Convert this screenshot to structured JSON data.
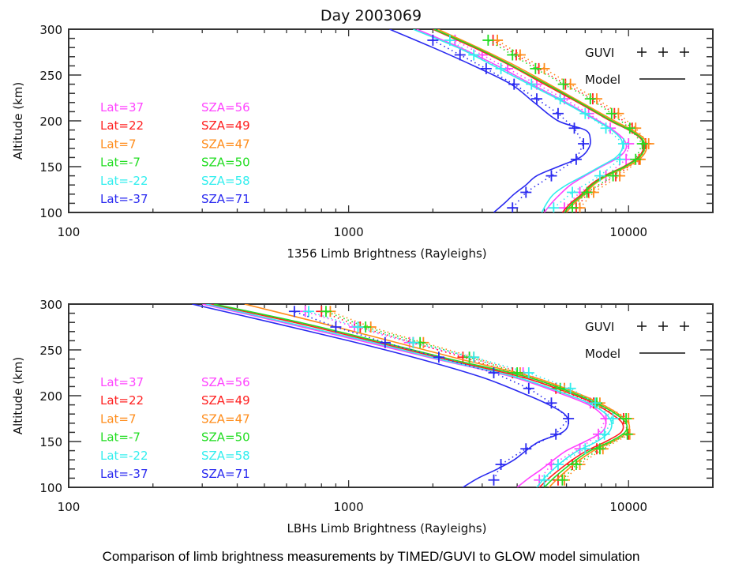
{
  "title": "Day 2003069",
  "caption": "Comparison of limb brightness measurements by TIMED/GUVI to GLOW model simulation",
  "chart_data": [
    {
      "type": "line",
      "xlabel": "1356 Limb Brightness (Rayleighs)",
      "ylabel": "Altitude (km)",
      "xscale": "log",
      "xlim": [
        100,
        20000
      ],
      "ylim": [
        100,
        300
      ],
      "xticks": [
        "100",
        "1000",
        "10000"
      ],
      "yticks": [
        "100",
        "150",
        "200",
        "250",
        "300"
      ],
      "legend": {
        "guvi_label": "GUVI",
        "guvi_symbol": "+ + +",
        "model_label": "Model",
        "placement": "top-right"
      },
      "series_labels": [
        {
          "lat": "Lat=37",
          "sza": "SZA=56",
          "color": "#ff44ff"
        },
        {
          "lat": "Lat=22",
          "sza": "SZA=49",
          "color": "#ff2020"
        },
        {
          "lat": "Lat=7",
          "sza": "SZA=47",
          "color": "#ff8c1a"
        },
        {
          "lat": "Lat=-7",
          "sza": "SZA=50",
          "color": "#22dd22"
        },
        {
          "lat": "Lat=-22",
          "sza": "SZA=58",
          "color": "#33eeee"
        },
        {
          "lat": "Lat=-37",
          "sza": "SZA=71",
          "color": "#2a2af0"
        }
      ],
      "model_altitudes": [
        100,
        110,
        120,
        130,
        140,
        150,
        160,
        170,
        180,
        190,
        200,
        220,
        240,
        260,
        280,
        300
      ],
      "model": [
        [
          5000,
          5300,
          5700,
          6200,
          7000,
          8000,
          9200,
          9800,
          9600,
          8800,
          7800,
          6000,
          4500,
          3400,
          2500,
          1750
        ],
        [
          5800,
          6200,
          6800,
          7300,
          8200,
          9600,
          10800,
          11300,
          11100,
          10000,
          8600,
          6600,
          5000,
          3800,
          2800,
          2000
        ],
        [
          6000,
          6400,
          7000,
          7500,
          8400,
          9900,
          11100,
          11600,
          11400,
          10300,
          8900,
          6800,
          5200,
          3950,
          2900,
          2080
        ],
        [
          5900,
          6300,
          6900,
          7400,
          8300,
          9700,
          10900,
          11400,
          11200,
          10100,
          8700,
          6700,
          5100,
          3850,
          2850,
          2020
        ],
        [
          4900,
          5100,
          5400,
          6000,
          6900,
          7900,
          9000,
          9500,
          9400,
          8700,
          7700,
          5900,
          4400,
          3300,
          2450,
          1700
        ],
        [
          3300,
          3600,
          3900,
          4300,
          4700,
          5600,
          6700,
          7200,
          7300,
          7000,
          5600,
          4600,
          3800,
          2800,
          2000,
          1400
        ]
      ],
      "guvi_altitudes": [
        105,
        122,
        140,
        158,
        175,
        192,
        208,
        224,
        240,
        257,
        272,
        288
      ],
      "guvi": [
        [
          5900,
          6700,
          8300,
          9800,
          10000,
          8600,
          7200,
          5900,
          4700,
          3700,
          3000,
          2400
        ],
        [
          6500,
          7200,
          9000,
          10900,
          11500,
          10300,
          8900,
          7450,
          5950,
          4780,
          3970,
          3280
        ],
        [
          6700,
          7500,
          9300,
          11000,
          11800,
          10600,
          9200,
          7700,
          6200,
          5000,
          4100,
          3400
        ],
        [
          6300,
          7100,
          8800,
          10600,
          11200,
          10100,
          8700,
          7300,
          5850,
          4650,
          3850,
          3150
        ],
        [
          5400,
          6300,
          7900,
          9300,
          9600,
          8300,
          7000,
          5700,
          4500,
          3500,
          2800,
          2300
        ],
        [
          3850,
          4300,
          5300,
          6500,
          6900,
          6400,
          5600,
          4700,
          3900,
          3100,
          2500,
          2000
        ]
      ]
    },
    {
      "type": "line",
      "xlabel": "LBHs Limb Brightness (Rayleighs)",
      "ylabel": "Altitude (km)",
      "xscale": "log",
      "xlim": [
        100,
        20000
      ],
      "ylim": [
        100,
        300
      ],
      "xticks": [
        "100",
        "1000",
        "10000"
      ],
      "yticks": [
        "100",
        "150",
        "200",
        "250",
        "300"
      ],
      "legend": {
        "guvi_label": "GUVI",
        "guvi_symbol": "+ + +",
        "model_label": "Model",
        "placement": "top-right"
      },
      "series_labels": [
        {
          "lat": "Lat=37",
          "sza": "SZA=56",
          "color": "#ff44ff"
        },
        {
          "lat": "Lat=22",
          "sza": "SZA=49",
          "color": "#ff2020"
        },
        {
          "lat": "Lat=7",
          "sza": "SZA=47",
          "color": "#ff8c1a"
        },
        {
          "lat": "Lat=-7",
          "sza": "SZA=50",
          "color": "#22dd22"
        },
        {
          "lat": "Lat=-22",
          "sza": "SZA=58",
          "color": "#33eeee"
        },
        {
          "lat": "Lat=-37",
          "sza": "SZA=71",
          "color": "#2a2af0"
        }
      ],
      "model_altitudes": [
        100,
        110,
        120,
        130,
        140,
        150,
        160,
        170,
        180,
        190,
        200,
        220,
        240,
        260,
        280,
        300
      ],
      "model": [
        [
          4000,
          4400,
          4900,
          5400,
          6000,
          7000,
          8000,
          8300,
          8000,
          7200,
          6000,
          3900,
          2050,
          1100,
          580,
          300
        ],
        [
          4800,
          5200,
          5700,
          6300,
          7100,
          8300,
          9400,
          9500,
          8700,
          7700,
          6500,
          4200,
          2200,
          1200,
          640,
          320
        ],
        [
          5200,
          5600,
          6100,
          6700,
          7500,
          8800,
          9900,
          10000,
          9200,
          8100,
          6900,
          4600,
          2500,
          1400,
          780,
          425
        ],
        [
          5000,
          5400,
          5900,
          6500,
          7300,
          8600,
          9700,
          9800,
          9000,
          7900,
          6700,
          4400,
          2300,
          1250,
          670,
          330
        ],
        [
          4700,
          5000,
          5400,
          5900,
          6600,
          7700,
          8500,
          8700,
          8300,
          7400,
          6200,
          4000,
          2100,
          1150,
          600,
          310
        ],
        [
          2560,
          2900,
          3400,
          3900,
          4300,
          4800,
          5800,
          6100,
          5900,
          5200,
          4400,
          3000,
          1800,
          1000,
          530,
          276
        ]
      ],
      "guvi_altitudes": [
        108,
        125,
        142,
        158,
        175,
        192,
        208,
        225,
        242,
        258,
        275,
        292
      ],
      "guvi": [
        [
          4800,
          5300,
          6700,
          7800,
          8300,
          7300,
          5900,
          4200,
          2700,
          1650,
          1050,
          700
        ],
        [
          5600,
          6300,
          7700,
          10000,
          9600,
          7500,
          5500,
          3850,
          2560,
          1700,
          1100,
          800
        ],
        [
          5900,
          6700,
          8100,
          10100,
          10000,
          7900,
          5900,
          4100,
          2800,
          1850,
          1200,
          860
        ],
        [
          5800,
          6500,
          7900,
          9900,
          9800,
          7700,
          5700,
          4000,
          2700,
          1800,
          1150,
          830
        ],
        [
          5000,
          5600,
          7000,
          8200,
          8800,
          7600,
          6200,
          4400,
          2800,
          1700,
          1080,
          720
        ],
        [
          3300,
          3500,
          4300,
          5500,
          6100,
          5300,
          4400,
          3300,
          2100,
          1350,
          900,
          640
        ]
      ]
    }
  ]
}
